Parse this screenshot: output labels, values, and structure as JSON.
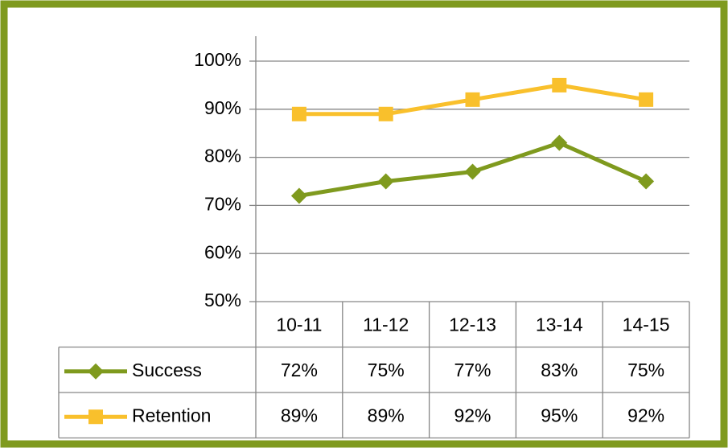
{
  "chart_data": {
    "type": "line",
    "categories": [
      "10-11",
      "11-12",
      "12-13",
      "13-14",
      "14-15"
    ],
    "series": [
      {
        "name": "Success",
        "color": "#7f9a1e",
        "marker": "diamond",
        "values": [
          72,
          75,
          77,
          83,
          75
        ],
        "value_labels": [
          "72%",
          "75%",
          "77%",
          "83%",
          "75%"
        ]
      },
      {
        "name": "Retention",
        "color": "#f9c02c",
        "marker": "square",
        "values": [
          89,
          89,
          92,
          95,
          92
        ],
        "value_labels": [
          "89%",
          "89%",
          "92%",
          "95%",
          "92%"
        ]
      }
    ],
    "ylim": [
      50,
      100
    ],
    "yticks": [
      {
        "value": 50,
        "label": "50%"
      },
      {
        "value": 60,
        "label": "60%"
      },
      {
        "value": 70,
        "label": "70%"
      },
      {
        "value": 80,
        "label": "80%"
      },
      {
        "value": 90,
        "label": "90%"
      },
      {
        "value": 100,
        "label": "100%"
      }
    ],
    "grid": true,
    "data_table": true,
    "border_color": "#7f9a1e"
  }
}
